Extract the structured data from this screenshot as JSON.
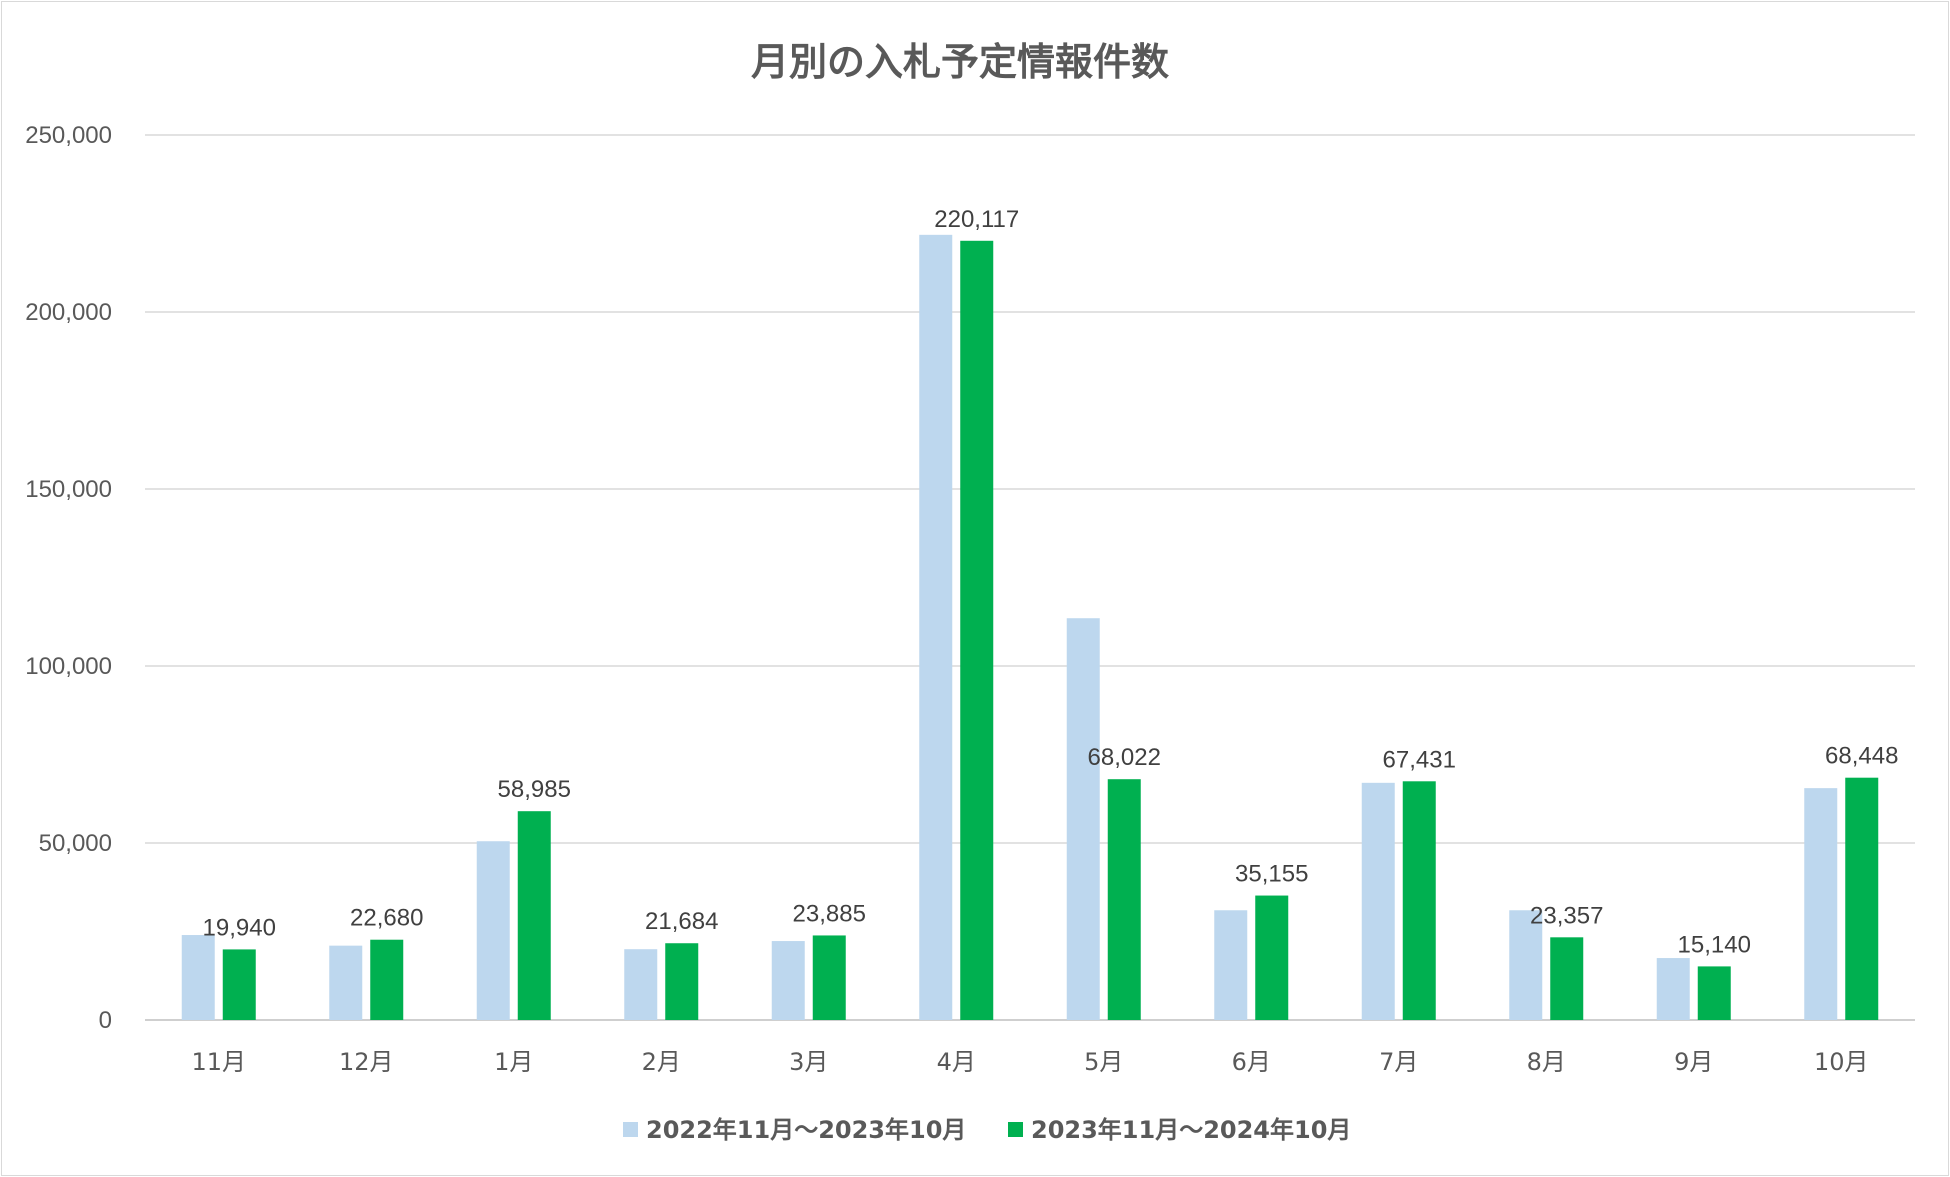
{
  "chart_data": {
    "type": "bar",
    "title": "月別の入札予定情報件数",
    "categories": [
      "11月",
      "12月",
      "1月",
      "2月",
      "3月",
      "4月",
      "5月",
      "6月",
      "7月",
      "8月",
      "9月",
      "10月"
    ],
    "ylim": [
      0,
      250000
    ],
    "yticks": [
      0,
      50000,
      100000,
      150000,
      200000,
      250000
    ],
    "ytick_labels": [
      "0",
      "50,000",
      "100,000",
      "150,000",
      "200,000",
      "250,000"
    ],
    "grid": true,
    "legend_position": "bottom",
    "series": [
      {
        "name": "2022年11月～2023年10月",
        "color": "#bdd7ee",
        "values": [
          24000,
          21000,
          50500,
          20000,
          22300,
          221800,
          113500,
          31000,
          67000,
          31000,
          17500,
          65500
        ],
        "data_labels": []
      },
      {
        "name": "2023年11月～2024年10月",
        "color": "#00b050",
        "values": [
          19940,
          22680,
          58985,
          21684,
          23885,
          220117,
          68022,
          35155,
          67431,
          23357,
          15140,
          68448
        ],
        "data_labels": [
          "19,940",
          "22,680",
          "58,985",
          "21,684",
          "23,885",
          "220,117",
          "68,022",
          "35,155",
          "67,431",
          "23,357",
          "15,140",
          "68,448"
        ]
      }
    ]
  }
}
